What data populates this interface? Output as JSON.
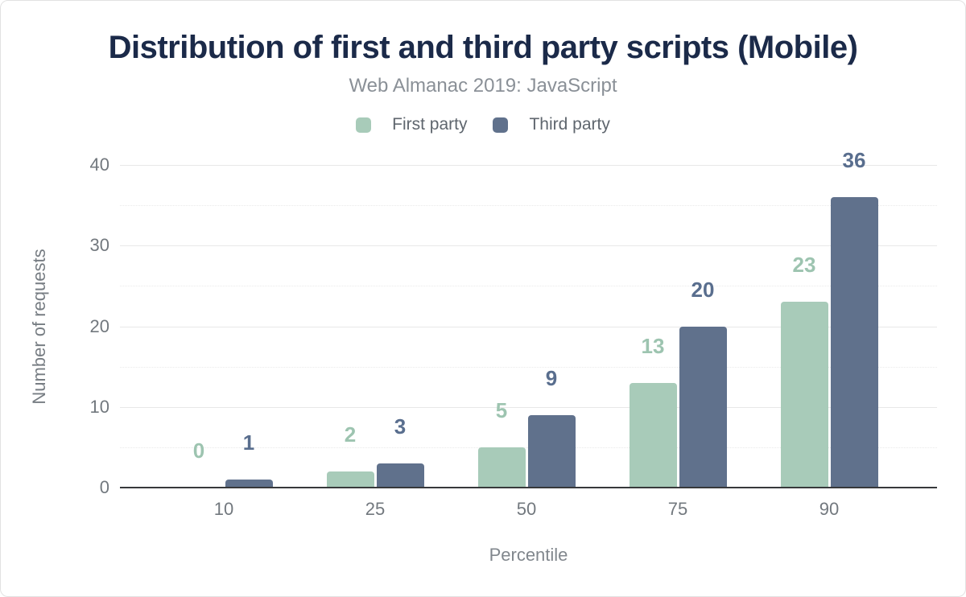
{
  "chart_data": {
    "type": "bar",
    "title": "Distribution of first and third party scripts (Mobile)",
    "subtitle": "Web Almanac 2019: JavaScript",
    "categories": [
      "10",
      "25",
      "50",
      "75",
      "90"
    ],
    "series": [
      {
        "name": "First party",
        "color": "#a8cbb9",
        "label_color": "#9dc4b0",
        "values": [
          0,
          2,
          5,
          13,
          23
        ]
      },
      {
        "name": "Third party",
        "color": "#60718c",
        "label_color": "#596e8e",
        "values": [
          1,
          3,
          9,
          20,
          36
        ]
      }
    ],
    "xlabel": "Percentile",
    "ylabel": "Number of requests",
    "ylim": [
      0,
      40
    ],
    "yticks": [
      0,
      10,
      20,
      30,
      40
    ],
    "minor_gridlines": [
      5,
      15,
      25,
      35
    ],
    "legend_position": "top",
    "grid": "horizontal",
    "axis_line_color": "#37393b",
    "title_color": "#1b2a49",
    "subtitle_color": "#8a9097"
  }
}
